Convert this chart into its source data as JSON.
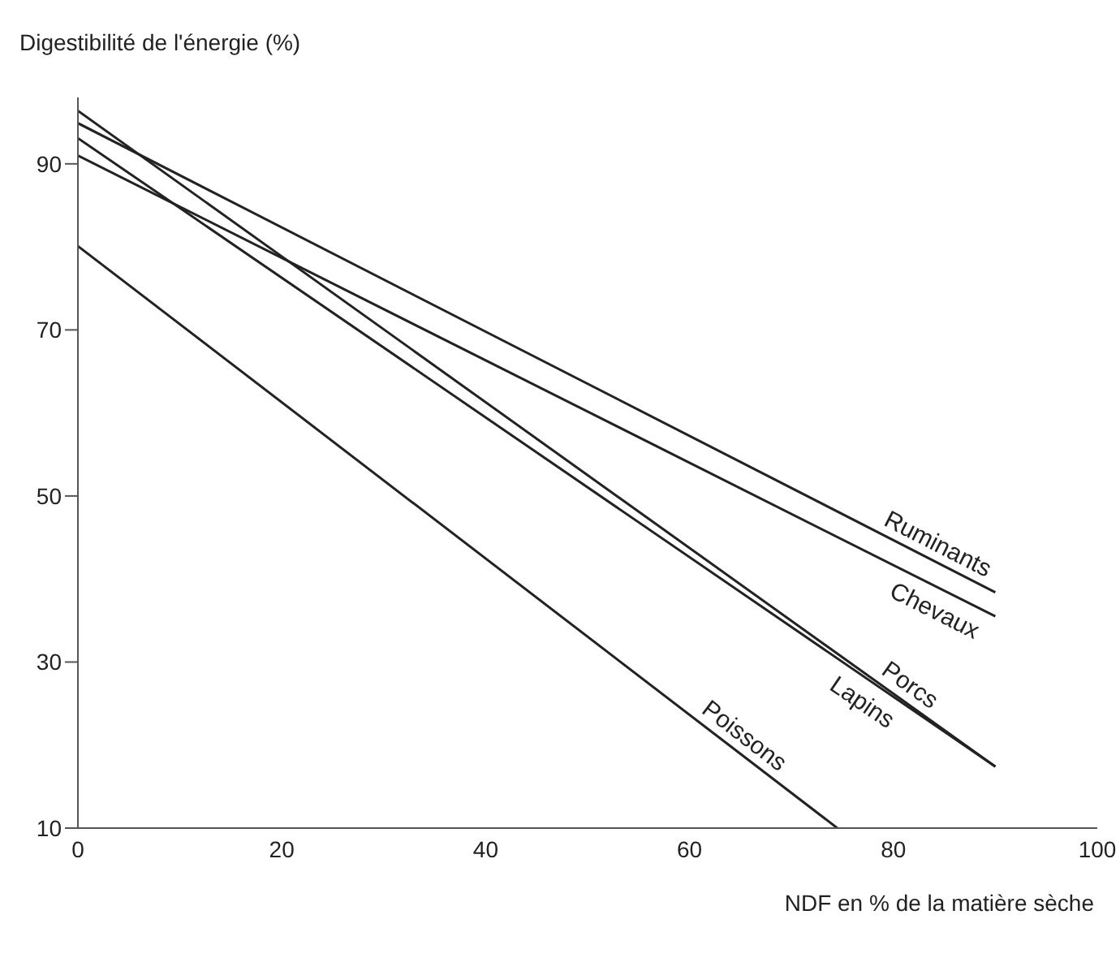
{
  "chart_data": {
    "type": "line",
    "ylabel": "Digestibilité de l'énergie (%)",
    "xlabel": "NDF en % de la matière sèche",
    "xlim": [
      0,
      100
    ],
    "xticks": [
      0,
      20,
      40,
      60,
      80,
      100
    ],
    "ylim": [
      10,
      98
    ],
    "yticks": [
      10,
      30,
      50,
      70,
      90
    ],
    "grid": false,
    "legend": false,
    "marker": "none",
    "line_style": "solid",
    "series": [
      {
        "name": "Ruminants",
        "color": "#222222",
        "x": [
          0,
          90
        ],
        "values": [
          94.9,
          38.4
        ]
      },
      {
        "name": "Chevaux",
        "color": "#222222",
        "x": [
          0,
          90
        ],
        "values": [
          91.0,
          35.5
        ]
      },
      {
        "name": "Porcs",
        "color": "#222222",
        "x": [
          0,
          90
        ],
        "values": [
          96.4,
          17.4
        ]
      },
      {
        "name": "Lapins",
        "color": "#222222",
        "x": [
          0,
          90
        ],
        "values": [
          93.1,
          17.4
        ]
      },
      {
        "name": "Poissons",
        "color": "#222222",
        "x": [
          0,
          74.5
        ],
        "values": [
          80.1,
          10
        ]
      }
    ]
  }
}
